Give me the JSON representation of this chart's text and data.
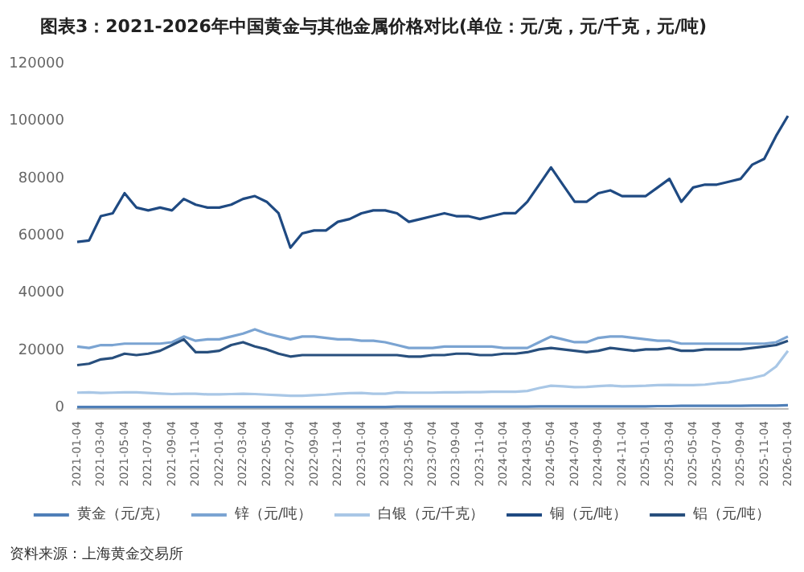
{
  "chart_data": {
    "type": "line",
    "title": "图表3：2021-2026年中国黄金与其他金属价格对比(单位：元/克，元/千克，元/吨)",
    "annotations": [
      "资料来源：上海黄金交易所"
    ],
    "categories": [
      "2021-01-04",
      null,
      "2021-03-04",
      null,
      "2021-05-04",
      null,
      "2021-07-04",
      null,
      "2021-09-04",
      null,
      "2021-11-04",
      null,
      "2022-01-04",
      null,
      "2022-03-04",
      null,
      "2022-05-04",
      null,
      "2022-07-04",
      null,
      "2022-09-04",
      null,
      "2022-11-04",
      null,
      "2023-01-04",
      null,
      "2023-03-04",
      null,
      "2023-05-04",
      null,
      "2023-07-04",
      null,
      "2023-09-04",
      null,
      "2023-11-04",
      null,
      "2024-01-04",
      null,
      "2024-03-04",
      null,
      "2024-05-04",
      null,
      "2024-07-04",
      null,
      "2024-09-04",
      null,
      "2024-11-04",
      null,
      "2025-01-04",
      null,
      "2025-03-04",
      null,
      "2025-05-04",
      null,
      "2025-07-04",
      null,
      "2025-09-04",
      null,
      "2025-11-04",
      null,
      "2026-01-04"
    ],
    "series": [
      {
        "name": "黄金（元/克）",
        "color": "#4f7fb8",
        "values": [
          400,
          400,
          400,
          400,
          400,
          400,
          400,
          400,
          400,
          400,
          400,
          400,
          400,
          400,
          400,
          400,
          400,
          400,
          400,
          400,
          400,
          400,
          400,
          400,
          400,
          400,
          400,
          500,
          500,
          500,
          500,
          500,
          500,
          500,
          500,
          500,
          500,
          500,
          500,
          600,
          600,
          600,
          600,
          600,
          600,
          600,
          600,
          600,
          600,
          700,
          700,
          800,
          800,
          800,
          800,
          800,
          800,
          900,
          900,
          900,
          1000
        ]
      },
      {
        "name": "锌（元/吨）",
        "color": "#7ba4d2",
        "values": [
          21500,
          21000,
          22000,
          22000,
          22500,
          22500,
          22500,
          22500,
          23000,
          25000,
          23500,
          24000,
          24000,
          25000,
          26000,
          27500,
          26000,
          25000,
          24000,
          25000,
          25000,
          24500,
          24000,
          24000,
          23500,
          23500,
          23000,
          22000,
          21000,
          21000,
          21000,
          21500,
          21500,
          21500,
          21500,
          21500,
          21000,
          21000,
          21000,
          23000,
          25000,
          24000,
          23000,
          23000,
          24500,
          25000,
          25000,
          24500,
          24000,
          23500,
          23500,
          22500,
          22500,
          22500,
          22500,
          22500,
          22500,
          22500,
          22500,
          23000,
          25000
        ]
      },
      {
        "name": "白银（元/千克）",
        "color": "#a9c7e6",
        "values": [
          5400,
          5500,
          5300,
          5400,
          5500,
          5500,
          5300,
          5100,
          4900,
          5000,
          5000,
          4800,
          4800,
          4900,
          5000,
          4900,
          4700,
          4500,
          4300,
          4300,
          4500,
          4700,
          5000,
          5200,
          5300,
          5000,
          5000,
          5500,
          5400,
          5400,
          5400,
          5500,
          5500,
          5600,
          5600,
          5700,
          5700,
          5700,
          6000,
          7000,
          7800,
          7600,
          7300,
          7400,
          7700,
          7900,
          7600,
          7700,
          7800,
          8000,
          8100,
          8000,
          8000,
          8200,
          8700,
          9000,
          9800,
          10500,
          11500,
          14500,
          20000
        ]
      },
      {
        "name": "铜（元/吨）",
        "color": "#1f4a82",
        "values": [
          58000,
          58500,
          67000,
          68000,
          75000,
          70000,
          69000,
          70000,
          69000,
          73000,
          71000,
          70000,
          70000,
          71000,
          73000,
          74000,
          72000,
          68000,
          56000,
          61000,
          62000,
          62000,
          65000,
          66000,
          68000,
          69000,
          69000,
          68000,
          65000,
          66000,
          67000,
          68000,
          67000,
          67000,
          66000,
          67000,
          68000,
          68000,
          72000,
          78000,
          84000,
          78000,
          72000,
          72000,
          75000,
          76000,
          74000,
          74000,
          74000,
          77000,
          80000,
          72000,
          77000,
          78000,
          78000,
          79000,
          80000,
          85000,
          87000,
          95000,
          102000
        ]
      },
      {
        "name": "铝（元/吨）",
        "color": "#284f7d",
        "values": [
          15000,
          15500,
          17000,
          17500,
          19000,
          18500,
          19000,
          20000,
          22000,
          24000,
          19500,
          19500,
          20000,
          22000,
          23000,
          21500,
          20500,
          19000,
          18000,
          18500,
          18500,
          18500,
          18500,
          18500,
          18500,
          18500,
          18500,
          18500,
          18000,
          18000,
          18500,
          18500,
          19000,
          19000,
          18500,
          18500,
          19000,
          19000,
          19500,
          20500,
          21000,
          20500,
          20000,
          19500,
          20000,
          21000,
          20500,
          20000,
          20500,
          20500,
          21000,
          20000,
          20000,
          20500,
          20500,
          20500,
          20500,
          21000,
          21500,
          22000,
          23500
        ]
      }
    ],
    "ylim": [
      0,
      120000
    ],
    "yticks": [
      0,
      {
        "value": 20000,
        "label": "20000"
      },
      {
        "value": 40000,
        "label": "40000"
      },
      {
        "value": 60000,
        "label": "60000"
      },
      {
        "value": 80000,
        "label": "80000"
      },
      {
        "value": 100000,
        "label": "100000"
      },
      {
        "value": 120000,
        "label": "120000"
      }
    ],
    "grid": false,
    "legend": "bottom",
    "marker": "none",
    "line_style": "solid"
  }
}
